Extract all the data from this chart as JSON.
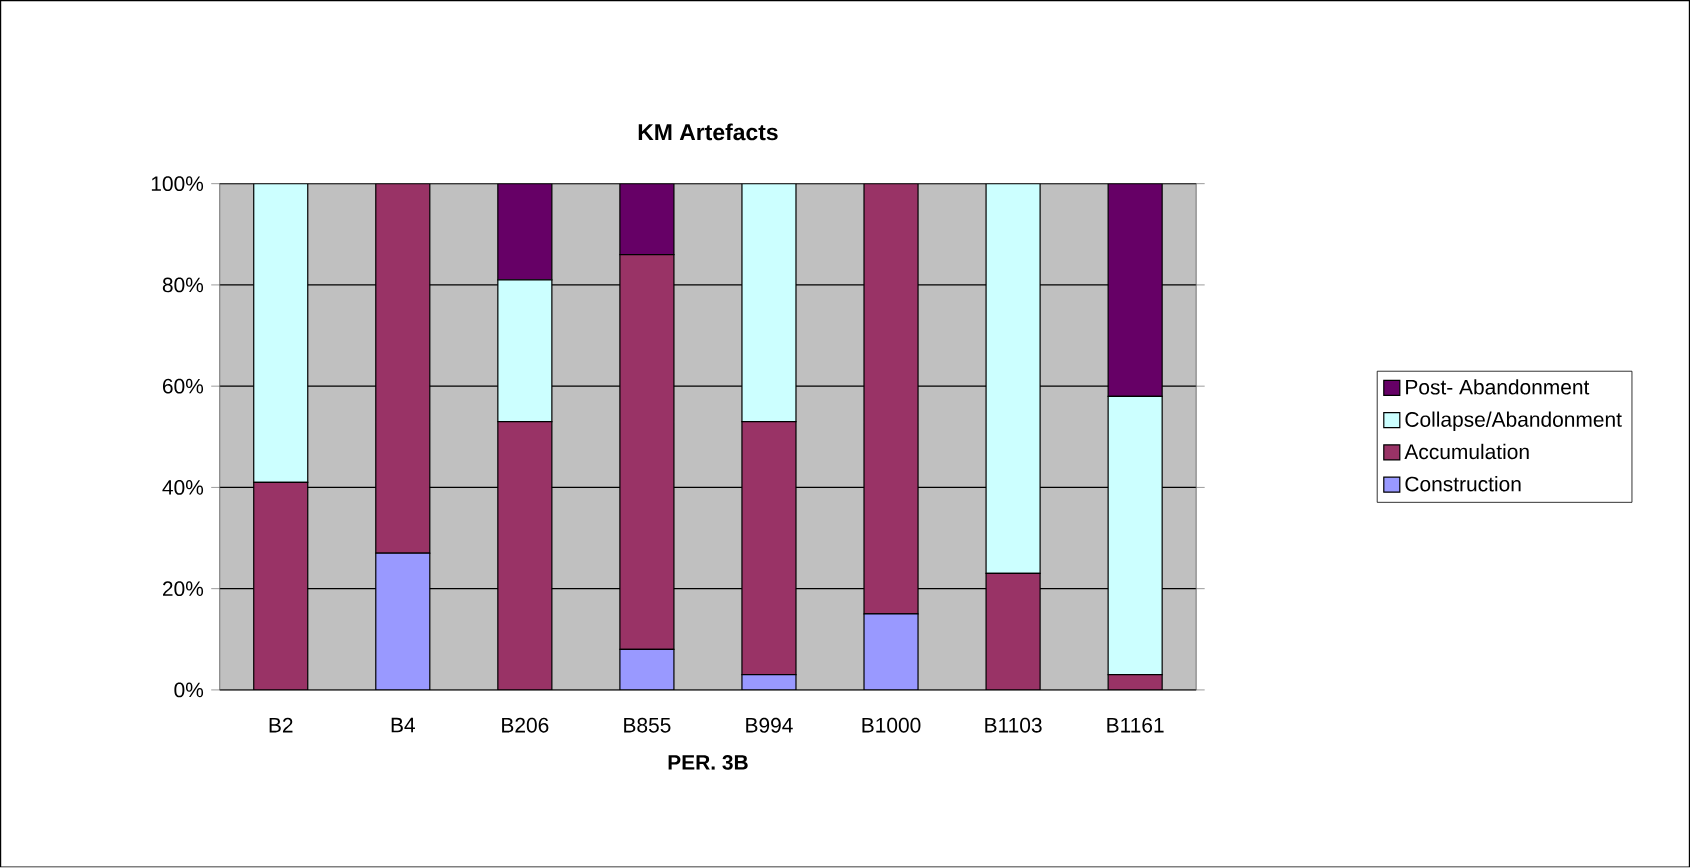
{
  "chart_data": {
    "type": "bar",
    "stacked": true,
    "title": "KM Artefacts",
    "xlabel": "PER. 3B",
    "categories": [
      "B2",
      "B4",
      "B206",
      "B855",
      "B994",
      "B1000",
      "B1103",
      "B1161"
    ],
    "series": [
      {
        "name": "Construction",
        "color": "#9999ff",
        "values": [
          0,
          27,
          0,
          8,
          3,
          15,
          0,
          0
        ]
      },
      {
        "name": "Accumulation",
        "color": "#993366",
        "values": [
          41,
          73,
          53,
          78,
          50,
          85,
          23,
          3
        ]
      },
      {
        "name": "Collapse/Abandonment",
        "color": "#ccffff",
        "values": [
          59,
          0,
          28,
          0,
          47,
          0,
          77,
          55
        ]
      },
      {
        "name": "Post- Abandonment",
        "color": "#660066",
        "values": [
          0,
          0,
          19,
          14,
          0,
          0,
          0,
          42
        ]
      }
    ],
    "ylim": [
      0,
      100
    ],
    "yticks": [
      {
        "value": 0,
        "label": "0%"
      },
      {
        "value": 20,
        "label": "20%"
      },
      {
        "value": 40,
        "label": "40%"
      },
      {
        "value": 60,
        "label": "60%"
      },
      {
        "value": 80,
        "label": "80%"
      },
      {
        "value": 100,
        "label": "100%"
      }
    ],
    "grid": "y",
    "legend": "right"
  }
}
